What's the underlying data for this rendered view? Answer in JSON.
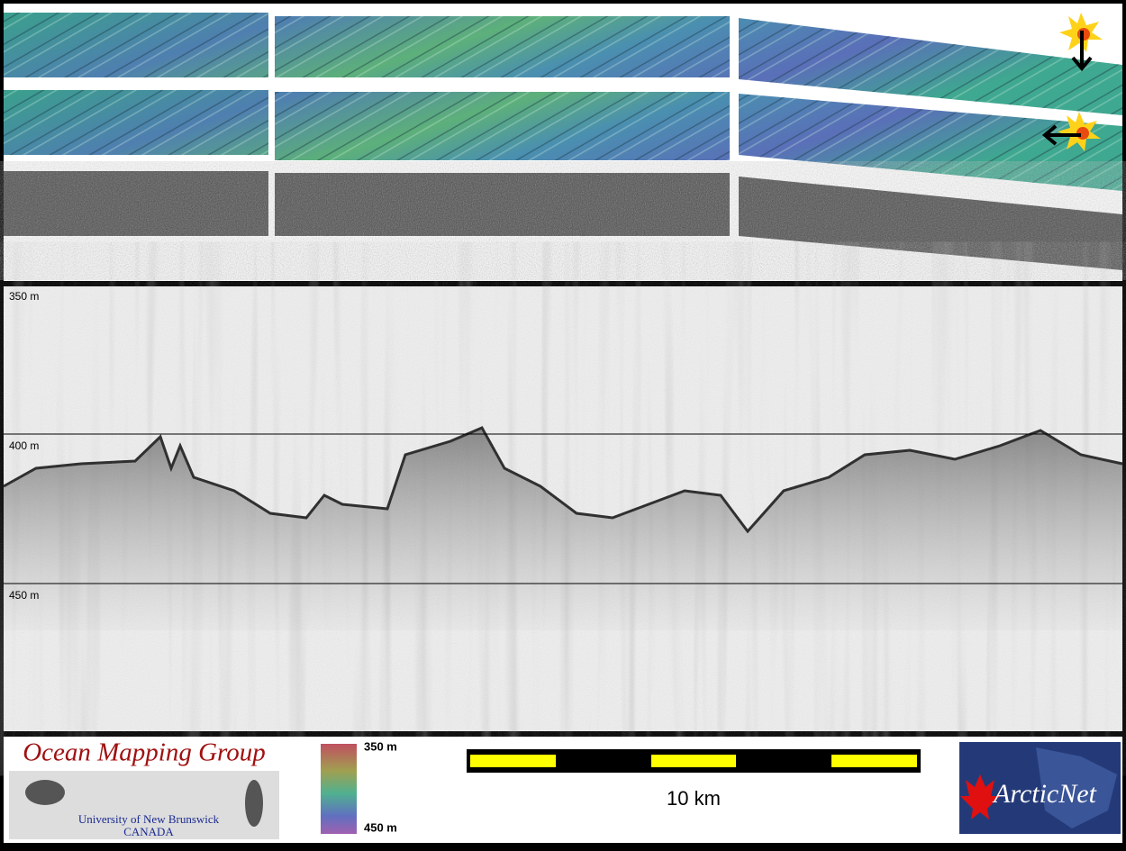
{
  "profile": {
    "depth_labels": [
      "350 m",
      "400 m",
      "450 m"
    ]
  },
  "footer": {
    "group": {
      "title": "Ocean Mapping Group",
      "university": "University of New Brunswick",
      "country": "CANADA"
    },
    "colorbar": {
      "top": "350 m",
      "bottom": "450 m"
    },
    "scale_bar": {
      "label": "10 km"
    },
    "partner": {
      "name": "ArcticNet"
    }
  }
}
